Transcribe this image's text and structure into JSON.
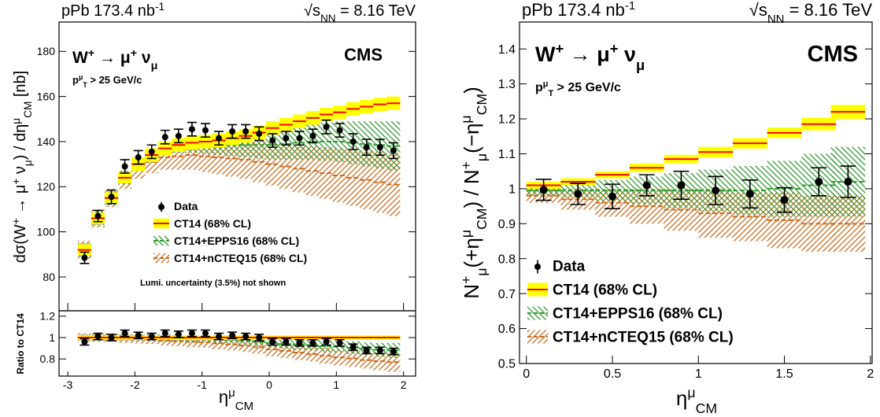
{
  "chart_data": [
    {
      "type": "band-points",
      "lumi": [
        {
          "text": "pPb 173.4 nb"
        },
        {
          "text": "-1",
          "pos": "sup"
        }
      ],
      "energy": [
        {
          "text": "√s"
        },
        {
          "text": "NN",
          "pos": "sub"
        },
        {
          "text": " = 8.16 TeV"
        }
      ],
      "experiment": "CMS",
      "process": [
        {
          "text": "W"
        },
        {
          "text": "+",
          "pos": "sup"
        },
        {
          "text": " → μ"
        },
        {
          "text": "+",
          "pos": "sup"
        },
        {
          "text": " ν"
        },
        {
          "text": "μ",
          "pos": "sub"
        }
      ],
      "cut": [
        {
          "text": "p"
        },
        {
          "text": "μ",
          "pos": "sup"
        },
        {
          "text": "T",
          "pos": "sub"
        },
        {
          "text": " > 25 GeV/c"
        }
      ],
      "note": "Lumi. uncertainty (3.5%) not shown",
      "xlabel": [
        {
          "text": "η"
        },
        {
          "text": "μ",
          "pos": "sup"
        },
        {
          "text": "CM",
          "pos": "sub"
        }
      ],
      "xlim": [
        -3.13,
        2.18
      ],
      "xticks": [
        -3,
        -2,
        -1,
        0,
        1,
        2
      ],
      "bin_width": 0.2,
      "x": [
        -2.75,
        -2.55,
        -2.35,
        -2.15,
        -1.95,
        -1.75,
        -1.55,
        -1.35,
        -1.15,
        -0.95,
        -0.75,
        -0.55,
        -0.35,
        -0.15,
        0.05,
        0.25,
        0.45,
        0.65,
        0.85,
        1.05,
        1.25,
        1.45,
        1.65,
        1.85
      ],
      "panels": [
        {
          "ylabel": [
            {
              "text": "dσ(W"
            },
            {
              "text": "+",
              "pos": "sup"
            },
            {
              "text": " → μ"
            },
            {
              "text": "+",
              "pos": "sup"
            },
            {
              "text": " ν"
            },
            {
              "text": "μ",
              "pos": "sub"
            },
            {
              "text": ") / dη"
            },
            {
              "text": "μ",
              "pos": "sup"
            },
            {
              "text": "CM",
              "pos": "sub"
            },
            {
              "text": " [nb]"
            }
          ],
          "ylim": [
            65,
            193
          ],
          "yticks": [
            80,
            100,
            120,
            140,
            160,
            180
          ],
          "series": [
            {
              "name": "Data",
              "kind": "points",
              "color": "#000000",
              "values": [
                88.5,
                107,
                115.5,
                129,
                133,
                135.5,
                142,
                142.5,
                145.5,
                145,
                141.5,
                144.5,
                144.5,
                143.5,
                140.5,
                141.5,
                141.5,
                142.5,
                146.5,
                145,
                140,
                137.5,
                137.5,
                136
              ],
              "errors": [
                2.5,
                2.5,
                3,
                3,
                3,
                3,
                3,
                3,
                3,
                3,
                3,
                3,
                3,
                3,
                3,
                3,
                3,
                3,
                3,
                3,
                3.5,
                3.5,
                3.5,
                3.5
              ]
            },
            {
              "name": "CT14 (68% CL)",
              "kind": "fill",
              "color": "#ffff00",
              "line_color": "#ff0000",
              "values": [
                92,
                106,
                115,
                124,
                130,
                134,
                137,
                138.5,
                139.5,
                140,
                140.5,
                141.5,
                142.5,
                144,
                146,
                147.5,
                149,
                150.5,
                152,
                153,
                154.5,
                155.5,
                156.5,
                157
              ],
              "errors": [
                2.5,
                2.5,
                2.5,
                2.5,
                3,
                3,
                3,
                3,
                3,
                3,
                3,
                3,
                3,
                3,
                3,
                3,
                3,
                3,
                3,
                3,
                3,
                3,
                3,
                3
              ]
            },
            {
              "name": "CT14+EPPS16 (68% CL)",
              "kind": "hatch",
              "hatch": "\\",
              "color": "#2e9a2e",
              "values": [
                92,
                106,
                115,
                124,
                130,
                134,
                137,
                138,
                138.5,
                138.5,
                138.5,
                138.5,
                138.5,
                138.5,
                138.5,
                139,
                139.5,
                140,
                140,
                140,
                139.5,
                139,
                138.5,
                138
              ],
              "errors": [
                3,
                3,
                3,
                3,
                3,
                3,
                3,
                3,
                3.5,
                4,
                4.5,
                5,
                5.5,
                6,
                6.5,
                7,
                7.5,
                8,
                8.5,
                9,
                9.5,
                10,
                10.5,
                11
              ]
            },
            {
              "name": "CT14+nCTEQ15 (68% CL)",
              "kind": "hatch",
              "hatch": "/",
              "color": "#cc6a1a",
              "values": [
                92,
                106,
                115,
                123,
                128,
                131,
                133,
                133.5,
                134,
                133.5,
                133,
                132.5,
                132,
                131,
                130,
                129,
                128,
                127,
                126,
                125,
                124,
                123,
                122,
                121
              ],
              "errors": [
                4,
                4,
                4,
                4,
                4.5,
                5,
                5.5,
                6,
                6.5,
                7,
                7.5,
                8,
                8.5,
                9,
                9.5,
                10,
                10.5,
                11,
                11.5,
                12,
                12.5,
                13,
                13.5,
                14
              ]
            }
          ]
        },
        {
          "ylabel": "Ratio to CT14",
          "ylim": [
            0.64,
            1.25
          ],
          "yticks": [
            0.8,
            1,
            1.2
          ],
          "series": [
            {
              "kind": "points",
              "color": "#000000",
              "values": [
                0.96,
                1.01,
                1.0,
                1.04,
                1.02,
                1.01,
                1.04,
                1.03,
                1.04,
                1.04,
                1.01,
                1.02,
                1.01,
                1.0,
                0.96,
                0.96,
                0.95,
                0.95,
                0.96,
                0.95,
                0.91,
                0.88,
                0.88,
                0.87
              ],
              "errors": [
                0.03,
                0.03,
                0.03,
                0.03,
                0.03,
                0.03,
                0.03,
                0.03,
                0.03,
                0.03,
                0.03,
                0.03,
                0.03,
                0.03,
                0.03,
                0.03,
                0.03,
                0.03,
                0.03,
                0.03,
                0.03,
                0.03,
                0.03,
                0.03
              ]
            },
            {
              "kind": "fill",
              "color": "#ffff00",
              "line_color": "#ff0000",
              "values": [
                1,
                1,
                1,
                1,
                1,
                1,
                1,
                1,
                1,
                1,
                1,
                1,
                1,
                1,
                1,
                1,
                1,
                1,
                1,
                1,
                1,
                1,
                1,
                1
              ],
              "errors": [
                0.02,
                0.02,
                0.02,
                0.02,
                0.02,
                0.02,
                0.02,
                0.02,
                0.02,
                0.02,
                0.02,
                0.02,
                0.02,
                0.02,
                0.02,
                0.02,
                0.02,
                0.02,
                0.02,
                0.02,
                0.02,
                0.02,
                0.02,
                0.02
              ]
            },
            {
              "kind": "hatch",
              "hatch": "\\",
              "color": "#2e9a2e",
              "values": [
                1,
                1,
                1,
                1,
                1,
                1,
                1,
                1,
                0.99,
                0.99,
                0.985,
                0.98,
                0.97,
                0.96,
                0.95,
                0.94,
                0.935,
                0.93,
                0.92,
                0.915,
                0.905,
                0.895,
                0.885,
                0.88
              ],
              "errors": [
                0.03,
                0.03,
                0.03,
                0.03,
                0.03,
                0.03,
                0.03,
                0.03,
                0.03,
                0.03,
                0.035,
                0.035,
                0.04,
                0.04,
                0.045,
                0.045,
                0.05,
                0.05,
                0.055,
                0.055,
                0.06,
                0.06,
                0.065,
                0.07
              ]
            },
            {
              "kind": "hatch",
              "hatch": "/",
              "color": "#cc6a1a",
              "values": [
                1,
                1,
                1,
                0.99,
                0.985,
                0.98,
                0.97,
                0.965,
                0.96,
                0.955,
                0.945,
                0.935,
                0.925,
                0.91,
                0.89,
                0.875,
                0.86,
                0.845,
                0.83,
                0.815,
                0.805,
                0.79,
                0.78,
                0.77
              ],
              "errors": [
                0.04,
                0.04,
                0.04,
                0.04,
                0.04,
                0.04,
                0.045,
                0.045,
                0.05,
                0.05,
                0.055,
                0.055,
                0.06,
                0.06,
                0.065,
                0.065,
                0.07,
                0.07,
                0.075,
                0.075,
                0.08,
                0.08,
                0.085,
                0.09
              ]
            }
          ]
        }
      ]
    },
    {
      "type": "band-points",
      "lumi": [
        {
          "text": "pPb 173.4 nb"
        },
        {
          "text": "-1",
          "pos": "sup"
        }
      ],
      "energy": [
        {
          "text": "√s"
        },
        {
          "text": "NN",
          "pos": "sub"
        },
        {
          "text": " = 8.16 TeV"
        }
      ],
      "experiment": "CMS",
      "process": [
        {
          "text": "W"
        },
        {
          "text": "+",
          "pos": "sup"
        },
        {
          "text": " → μ"
        },
        {
          "text": "+",
          "pos": "sup"
        },
        {
          "text": " ν"
        },
        {
          "text": "μ",
          "pos": "sub"
        }
      ],
      "cut": [
        {
          "text": "p"
        },
        {
          "text": "μ",
          "pos": "sup"
        },
        {
          "text": "T",
          "pos": "sub"
        },
        {
          "text": " > 25 GeV/c"
        }
      ],
      "xlabel": [
        {
          "text": "η"
        },
        {
          "text": "μ",
          "pos": "sup"
        },
        {
          "text": "CM",
          "pos": "sub"
        }
      ],
      "xlim": [
        -0.04,
        2.01
      ],
      "xticks": [
        0,
        0.5,
        1,
        1.5,
        2
      ],
      "bin_width": 0.2,
      "x": [
        0.1,
        0.3,
        0.5,
        0.7,
        0.9,
        1.1,
        1.3,
        1.5,
        1.7,
        1.87
      ],
      "panels": [
        {
          "ylabel": [
            {
              "text": "N"
            },
            {
              "text": "+",
              "pos": "sup"
            },
            {
              "text": "μ",
              "pos": "sub"
            },
            {
              "text": "(+η"
            },
            {
              "text": "μ",
              "pos": "sup"
            },
            {
              "text": "CM",
              "pos": "sub"
            },
            {
              "text": ") / N"
            },
            {
              "text": "+",
              "pos": "sup"
            },
            {
              "text": "μ",
              "pos": "sub"
            },
            {
              "text": "(−η"
            },
            {
              "text": "μ",
              "pos": "sup"
            },
            {
              "text": "CM",
              "pos": "sub"
            },
            {
              "text": ")"
            }
          ],
          "ylim": [
            0.5,
            1.477
          ],
          "yticks": [
            0.5,
            0.6,
            0.7,
            0.8,
            0.9,
            1,
            1.1,
            1.2,
            1.3,
            1.4
          ],
          "series": [
            {
              "name": "Data",
              "kind": "points",
              "color": "#000000",
              "values": [
                0.997,
                0.985,
                0.978,
                1.01,
                1.01,
                0.995,
                0.985,
                0.968,
                1.02,
                1.02
              ],
              "errors": [
                0.03,
                0.03,
                0.035,
                0.03,
                0.04,
                0.04,
                0.04,
                0.035,
                0.04,
                0.045
              ]
            },
            {
              "name": "CT14 (68% CL)",
              "kind": "fill",
              "color": "#ffff00",
              "line_color": "#ff0000",
              "values": [
                1.01,
                1.02,
                1.04,
                1.06,
                1.085,
                1.105,
                1.13,
                1.16,
                1.185,
                1.22
              ],
              "errors": [
                0.01,
                0.01,
                0.01,
                0.012,
                0.012,
                0.015,
                0.015,
                0.015,
                0.018,
                0.02
              ]
            },
            {
              "name": "CT14+EPPS16 (68% CL)",
              "kind": "hatch",
              "hatch": "\\",
              "color": "#2e9a2e",
              "values": [
                0.995,
                0.995,
                0.995,
                0.995,
                0.995,
                0.995,
                0.995,
                1.0,
                1.01,
                1.02
              ],
              "errors": [
                0.015,
                0.02,
                0.03,
                0.04,
                0.05,
                0.06,
                0.07,
                0.08,
                0.09,
                0.1
              ]
            },
            {
              "name": "CT14+nCTEQ15 (68% CL)",
              "kind": "hatch",
              "hatch": "/",
              "color": "#cc6a1a",
              "values": [
                0.98,
                0.97,
                0.96,
                0.95,
                0.94,
                0.93,
                0.92,
                0.91,
                0.9,
                0.9
              ],
              "errors": [
                0.02,
                0.03,
                0.04,
                0.05,
                0.06,
                0.07,
                0.07,
                0.08,
                0.08,
                0.08
              ]
            }
          ]
        }
      ]
    }
  ]
}
